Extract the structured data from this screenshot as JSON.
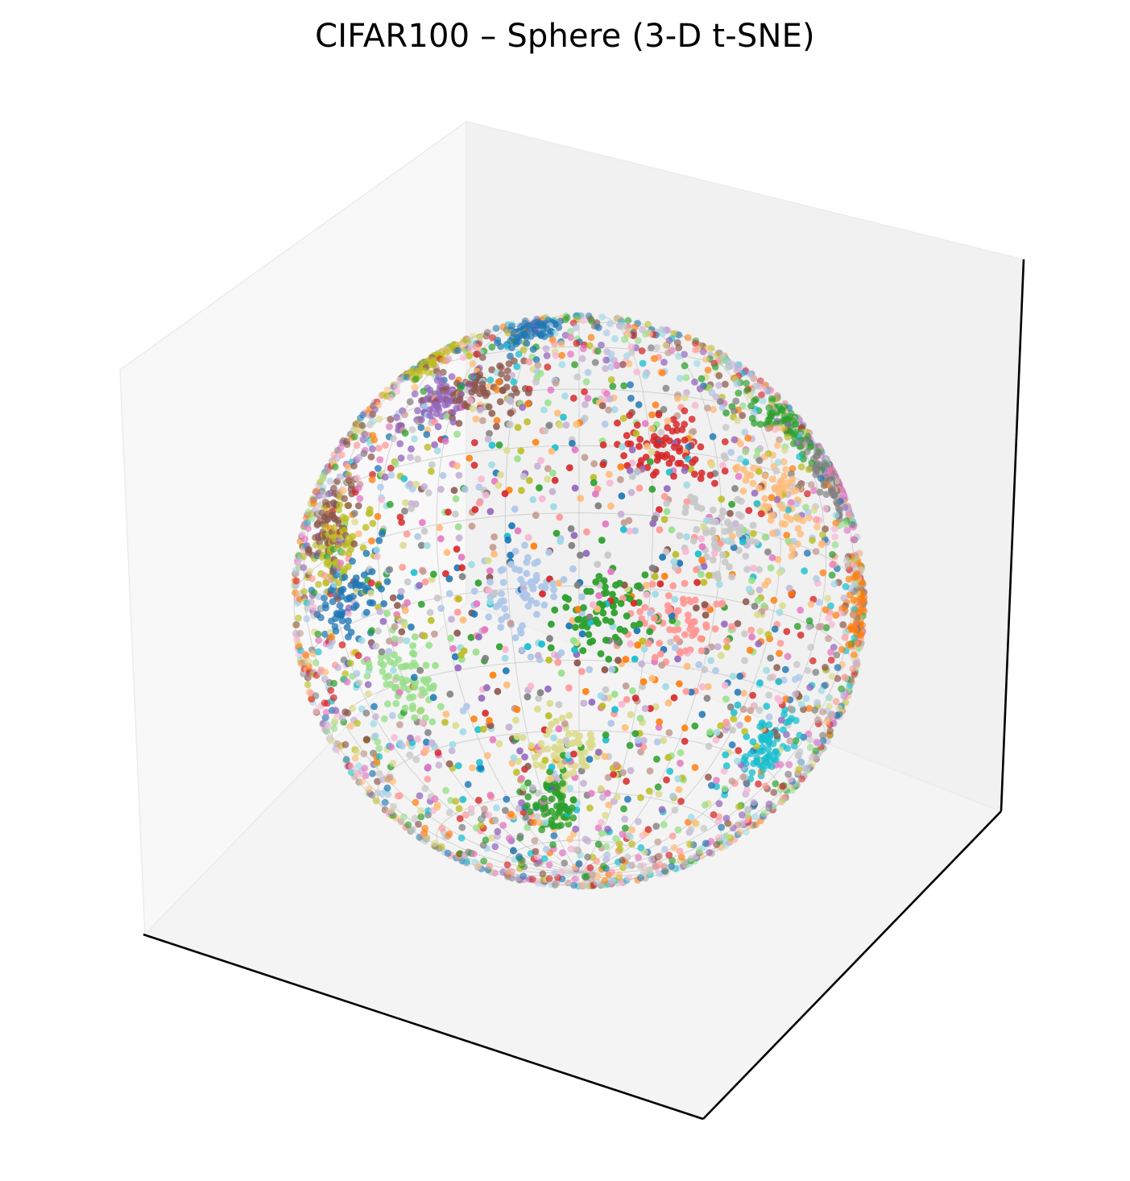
{
  "chart_data": {
    "type": "scatter",
    "projection": "3d",
    "title": "CIFAR100 – Sphere (3-D t-SNE)",
    "xlabel": "",
    "ylabel": "",
    "zlabel": "",
    "axis_ticks": "hidden",
    "grid": false,
    "legend": "none",
    "surface": "unit-sphere",
    "num_classes": 100,
    "colormap": [
      "#1f77b4",
      "#aec7e8",
      "#ff7f0e",
      "#ffbb78",
      "#2ca02c",
      "#98df8a",
      "#d62728",
      "#ff9896",
      "#9467bd",
      "#c5b0d5",
      "#8c564b",
      "#c49c94",
      "#e377c2",
      "#f7b6d2",
      "#7f7f7f",
      "#c7c7c7",
      "#bcbd22",
      "#dbdb8d",
      "#17becf",
      "#9edae5"
    ],
    "clusters": [
      {
        "color": "#2ca02c",
        "lat": 30,
        "lon": 56
      },
      {
        "color": "#d62728",
        "lat": 16,
        "lon": 18
      },
      {
        "color": "#8c564b",
        "lat": 8,
        "lon": -62
      },
      {
        "color": "#8c564b",
        "lat": 33,
        "lon": -25
      },
      {
        "color": "#bcbd22",
        "lat": 50,
        "lon": -52
      },
      {
        "color": "#1f77b4",
        "lat": 55,
        "lon": -18
      },
      {
        "color": "#7f7f7f",
        "lat": 20,
        "lon": 68
      },
      {
        "color": "#e377c2",
        "lat": 25,
        "lon": 78
      },
      {
        "color": "#ff7f0e",
        "lat": -5,
        "lon": 80
      },
      {
        "color": "#2ca02c",
        "lat": -20,
        "lon": 5
      },
      {
        "color": "#ff9896",
        "lat": -20,
        "lon": 22
      },
      {
        "color": "#98df8a",
        "lat": -30,
        "lon": -45
      },
      {
        "color": "#1f77b4",
        "lat": -10,
        "lon": -55
      },
      {
        "color": "#dbdb8d",
        "lat": -50,
        "lon": -5
      },
      {
        "color": "#2ca02c",
        "lat": -62,
        "lon": -12
      },
      {
        "color": "#9467bd",
        "lat": 30,
        "lon": -35
      },
      {
        "color": "#aec7e8",
        "lat": -15,
        "lon": -12
      },
      {
        "color": "#c7c7c7",
        "lat": -2,
        "lon": 30
      },
      {
        "color": "#17becf",
        "lat": -40,
        "lon": 60
      },
      {
        "color": "#ffbb78",
        "lat": 10,
        "lon": 45
      },
      {
        "color": "#bcbd22",
        "lat": 2,
        "lon": -58
      }
    ]
  }
}
